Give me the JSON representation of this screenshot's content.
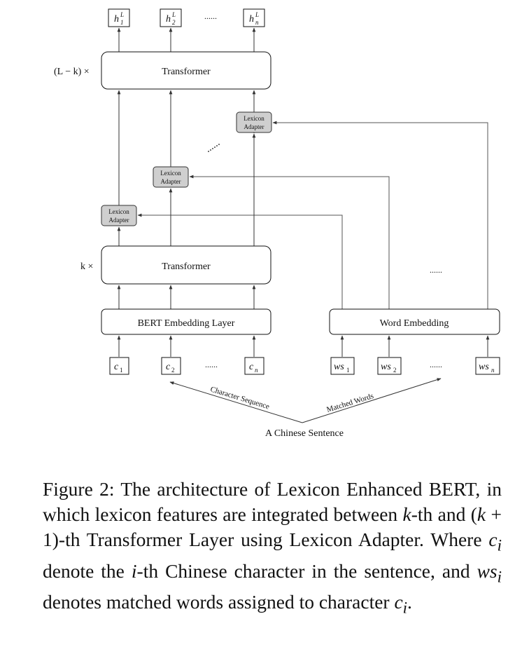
{
  "diagram": {
    "outputs": [
      {
        "base": "h",
        "sub": "1",
        "sup": "L"
      },
      {
        "base": "h",
        "sub": "2",
        "sup": "L"
      },
      {
        "base": "h",
        "sub": "n",
        "sup": "L"
      }
    ],
    "ellipsis": "......",
    "top_transformer": {
      "label": "Transformer",
      "repeat": "(L − k) ×"
    },
    "bottom_transformer": {
      "label": "Transformer",
      "repeat": "k ×"
    },
    "lexicon_adapter": {
      "line1": "Lexicon",
      "line2": "Adapter"
    },
    "bert_embedding": "BERT Embedding Layer",
    "word_embedding": "Word Embedding",
    "chars": [
      {
        "base": "c",
        "sub": "1"
      },
      {
        "base": "c",
        "sub": "2"
      },
      {
        "base": "c",
        "sub": "n"
      }
    ],
    "words": [
      {
        "base": "ws",
        "sub": "1"
      },
      {
        "base": "ws",
        "sub": "2"
      },
      {
        "base": "ws",
        "sub": "n"
      }
    ],
    "character_sequence": "Character Sequence",
    "matched_words": "Matched Words",
    "sentence": "A Chinese Sentence",
    "colors": {
      "adapter_fill": "#cfcfcf",
      "line": "#333333"
    }
  },
  "caption": {
    "p1": "Figure 2: The architecture of Lexicon Enhanced BERT, in which lexicon features are integrated between ",
    "k1": "k",
    "p2": "-th and (",
    "k2": "k",
    "p3": " + 1)-th Transformer Layer using Lexicon Adapter. Where ",
    "ci": "c",
    "ci_sub": "i",
    "p4": " denote the ",
    "i": "i",
    "p5": "-th Chinese character in the sentence, and ",
    "ws": "ws",
    "ws_sub": "i",
    "p6": " denotes matched words assigned to character ",
    "ci2": "c",
    "ci2_sub": "i",
    "p7": "."
  }
}
